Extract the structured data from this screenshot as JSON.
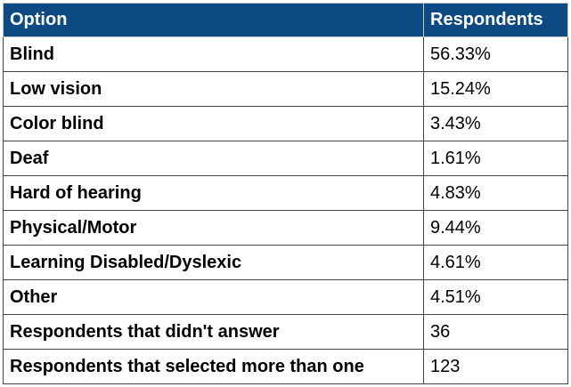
{
  "table": {
    "headers": {
      "option": "Option",
      "respondents": "Respondents"
    },
    "rows": [
      {
        "option": "Blind",
        "value": "56.33%"
      },
      {
        "option": "Low vision",
        "value": "15.24%"
      },
      {
        "option": "Color blind",
        "value": "3.43%"
      },
      {
        "option": "Deaf",
        "value": "1.61%"
      },
      {
        "option": "Hard of hearing",
        "value": "4.83%"
      },
      {
        "option": "Physical/Motor",
        "value": "9.44%"
      },
      {
        "option": "Learning Disabled/Dyslexic",
        "value": "4.61%"
      },
      {
        "option": "Other",
        "value": "4.51%"
      },
      {
        "option": "Respondents that didn't answer",
        "value": "36"
      },
      {
        "option": "Respondents that selected more than one",
        "value": "123"
      }
    ]
  },
  "colors": {
    "header_background": "#0d4a84",
    "header_text": "#ffffff",
    "border": "#444444"
  }
}
